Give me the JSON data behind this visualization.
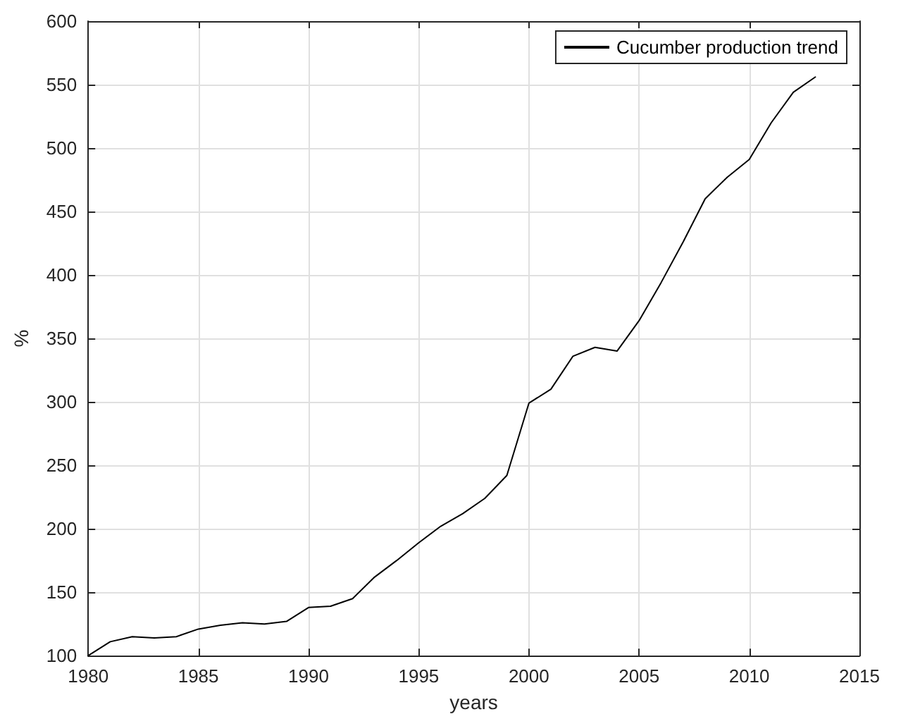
{
  "chart_data": {
    "type": "line",
    "xlabel": "years",
    "ylabel": "%",
    "x": [
      1980,
      1981,
      1982,
      1983,
      1984,
      1985,
      1986,
      1987,
      1988,
      1989,
      1990,
      1991,
      1992,
      1993,
      1994,
      1995,
      1996,
      1997,
      1998,
      1999,
      2000,
      2001,
      2002,
      2003,
      2004,
      2005,
      2006,
      2007,
      2008,
      2009,
      2010,
      2011,
      2012,
      2013
    ],
    "series": [
      {
        "name": "Cucumber production trend",
        "color": "#000000",
        "values": [
          100,
          111,
          115,
          114,
          115,
          121,
          124,
          126,
          125,
          127,
          138,
          139,
          145,
          162,
          175,
          189,
          202,
          212,
          224,
          242,
          299,
          310,
          336,
          343,
          340,
          364,
          394,
          426,
          460,
          477,
          491,
          520,
          544,
          556
        ]
      }
    ],
    "xlim": [
      1980,
      2015
    ],
    "xticks": [
      1980,
      1985,
      1990,
      1995,
      2000,
      2005,
      2010,
      2015
    ],
    "ylim": [
      100,
      600
    ],
    "yticks": [
      100,
      150,
      200,
      250,
      300,
      350,
      400,
      450,
      500,
      550,
      600
    ],
    "grid": true,
    "legend": "top right",
    "marker": "none",
    "line_style": "solid"
  }
}
